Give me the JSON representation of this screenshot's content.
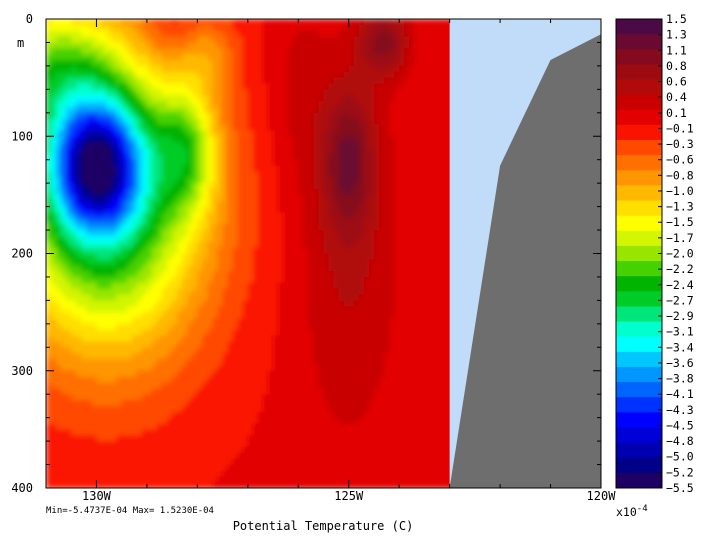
{
  "chart_data": {
    "type": "heatmap",
    "title": "",
    "xlabel": "Potential Temperature (C)",
    "ylabel": "m",
    "xlim": [
      -131,
      -120
    ],
    "ylim": [
      0,
      400
    ],
    "x_ticks": [
      -130,
      -125,
      -120
    ],
    "x_tick_labels": [
      "130W",
      "125W",
      "120W"
    ],
    "y_ticks": [
      0,
      100,
      200,
      300,
      400
    ],
    "y_tick_labels": [
      "0",
      "100",
      "200",
      "300",
      "400"
    ],
    "stats_text": "Min=-5.4737E-04  Max= 1.5230E-04",
    "colorbar": {
      "exponent_label": "x10",
      "exponent": "-4",
      "levels": [
        "1.5",
        "1.3",
        "1.1",
        "0.8",
        "0.6",
        "0.4",
        "0.1",
        "−0.1",
        "−0.3",
        "−0.6",
        "−0.8",
        "−1.0",
        "−1.3",
        "−1.5",
        "−1.7",
        "−2.0",
        "−2.2",
        "−2.4",
        "−2.7",
        "−2.9",
        "−3.1",
        "−3.4",
        "−3.6",
        "−3.8",
        "−4.1",
        "−4.3",
        "−4.5",
        "−4.8",
        "−5.0",
        "−5.2",
        "−5.5"
      ],
      "colors": [
        "#4b0a46",
        "#6a0a30",
        "#850a1e",
        "#9c0a12",
        "#b00a0a",
        "#c80000",
        "#e20000",
        "#fa1400",
        "#ff4a00",
        "#ff7000",
        "#ff9500",
        "#ffb800",
        "#ffde00",
        "#ffff00",
        "#d2f500",
        "#98e600",
        "#46d200",
        "#00b400",
        "#00cc28",
        "#00e67a",
        "#00ffcc",
        "#00ffff",
        "#00c8ff",
        "#0096ff",
        "#0064ff",
        "#0032ff",
        "#0000ff",
        "#0000d8",
        "#0000b0",
        "#000088",
        "#1e0064"
      ]
    },
    "land_color": "#6e6e6e",
    "missing_color": "#c0dcf8",
    "data_extent_lon": -123
  }
}
